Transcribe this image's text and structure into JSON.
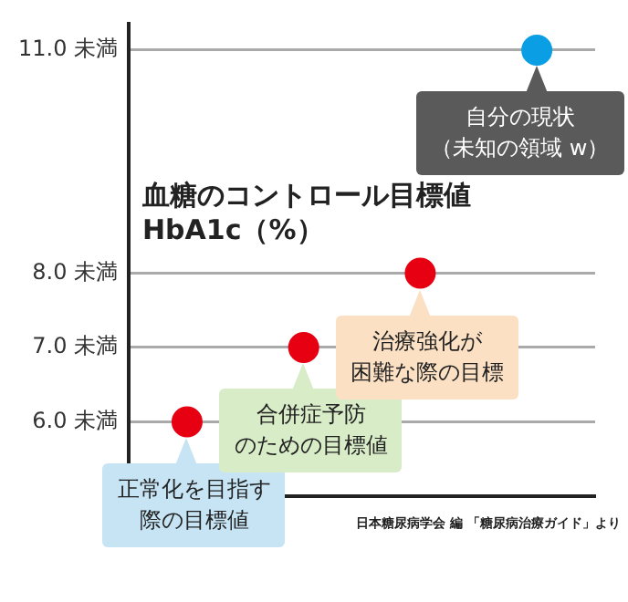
{
  "chart_data": {
    "type": "scatter",
    "title": "血糖のコントロール目標値\nHbA1c（%）",
    "categories": [
      null,
      null,
      null,
      null
    ],
    "series": [
      {
        "colors": [
          "#e60012",
          "#e60012",
          "#e60012",
          "#0a9fe4"
        ],
        "values": [
          6.0,
          7.0,
          8.0,
          11.0
        ]
      }
    ],
    "ylim": [
      5.0,
      11.35
    ],
    "yticks": [
      {
        "value": 6.0,
        "label": "6.0 未満"
      },
      {
        "value": 7.0,
        "label": "7.0 未満"
      },
      {
        "value": 8.0,
        "label": "8.0 未満"
      },
      {
        "value": 11.0,
        "label": "11.0 未満"
      }
    ],
    "grid": "y",
    "legend": false,
    "marker": "circle",
    "tick_labels": "y",
    "annotations": [
      {
        "text": "正常化を目指す際の目標値",
        "y": 6.0
      },
      {
        "text": "合併症予防のための目標値",
        "y": 7.0
      },
      {
        "text": "治療強化が困難な際の目標",
        "y": 8.0
      },
      {
        "text": "自分の現状（未知の領域 w）",
        "y": 11.0
      },
      "日本糖尿病学会 編 「糖尿病治療ガイド」より"
    ]
  }
}
